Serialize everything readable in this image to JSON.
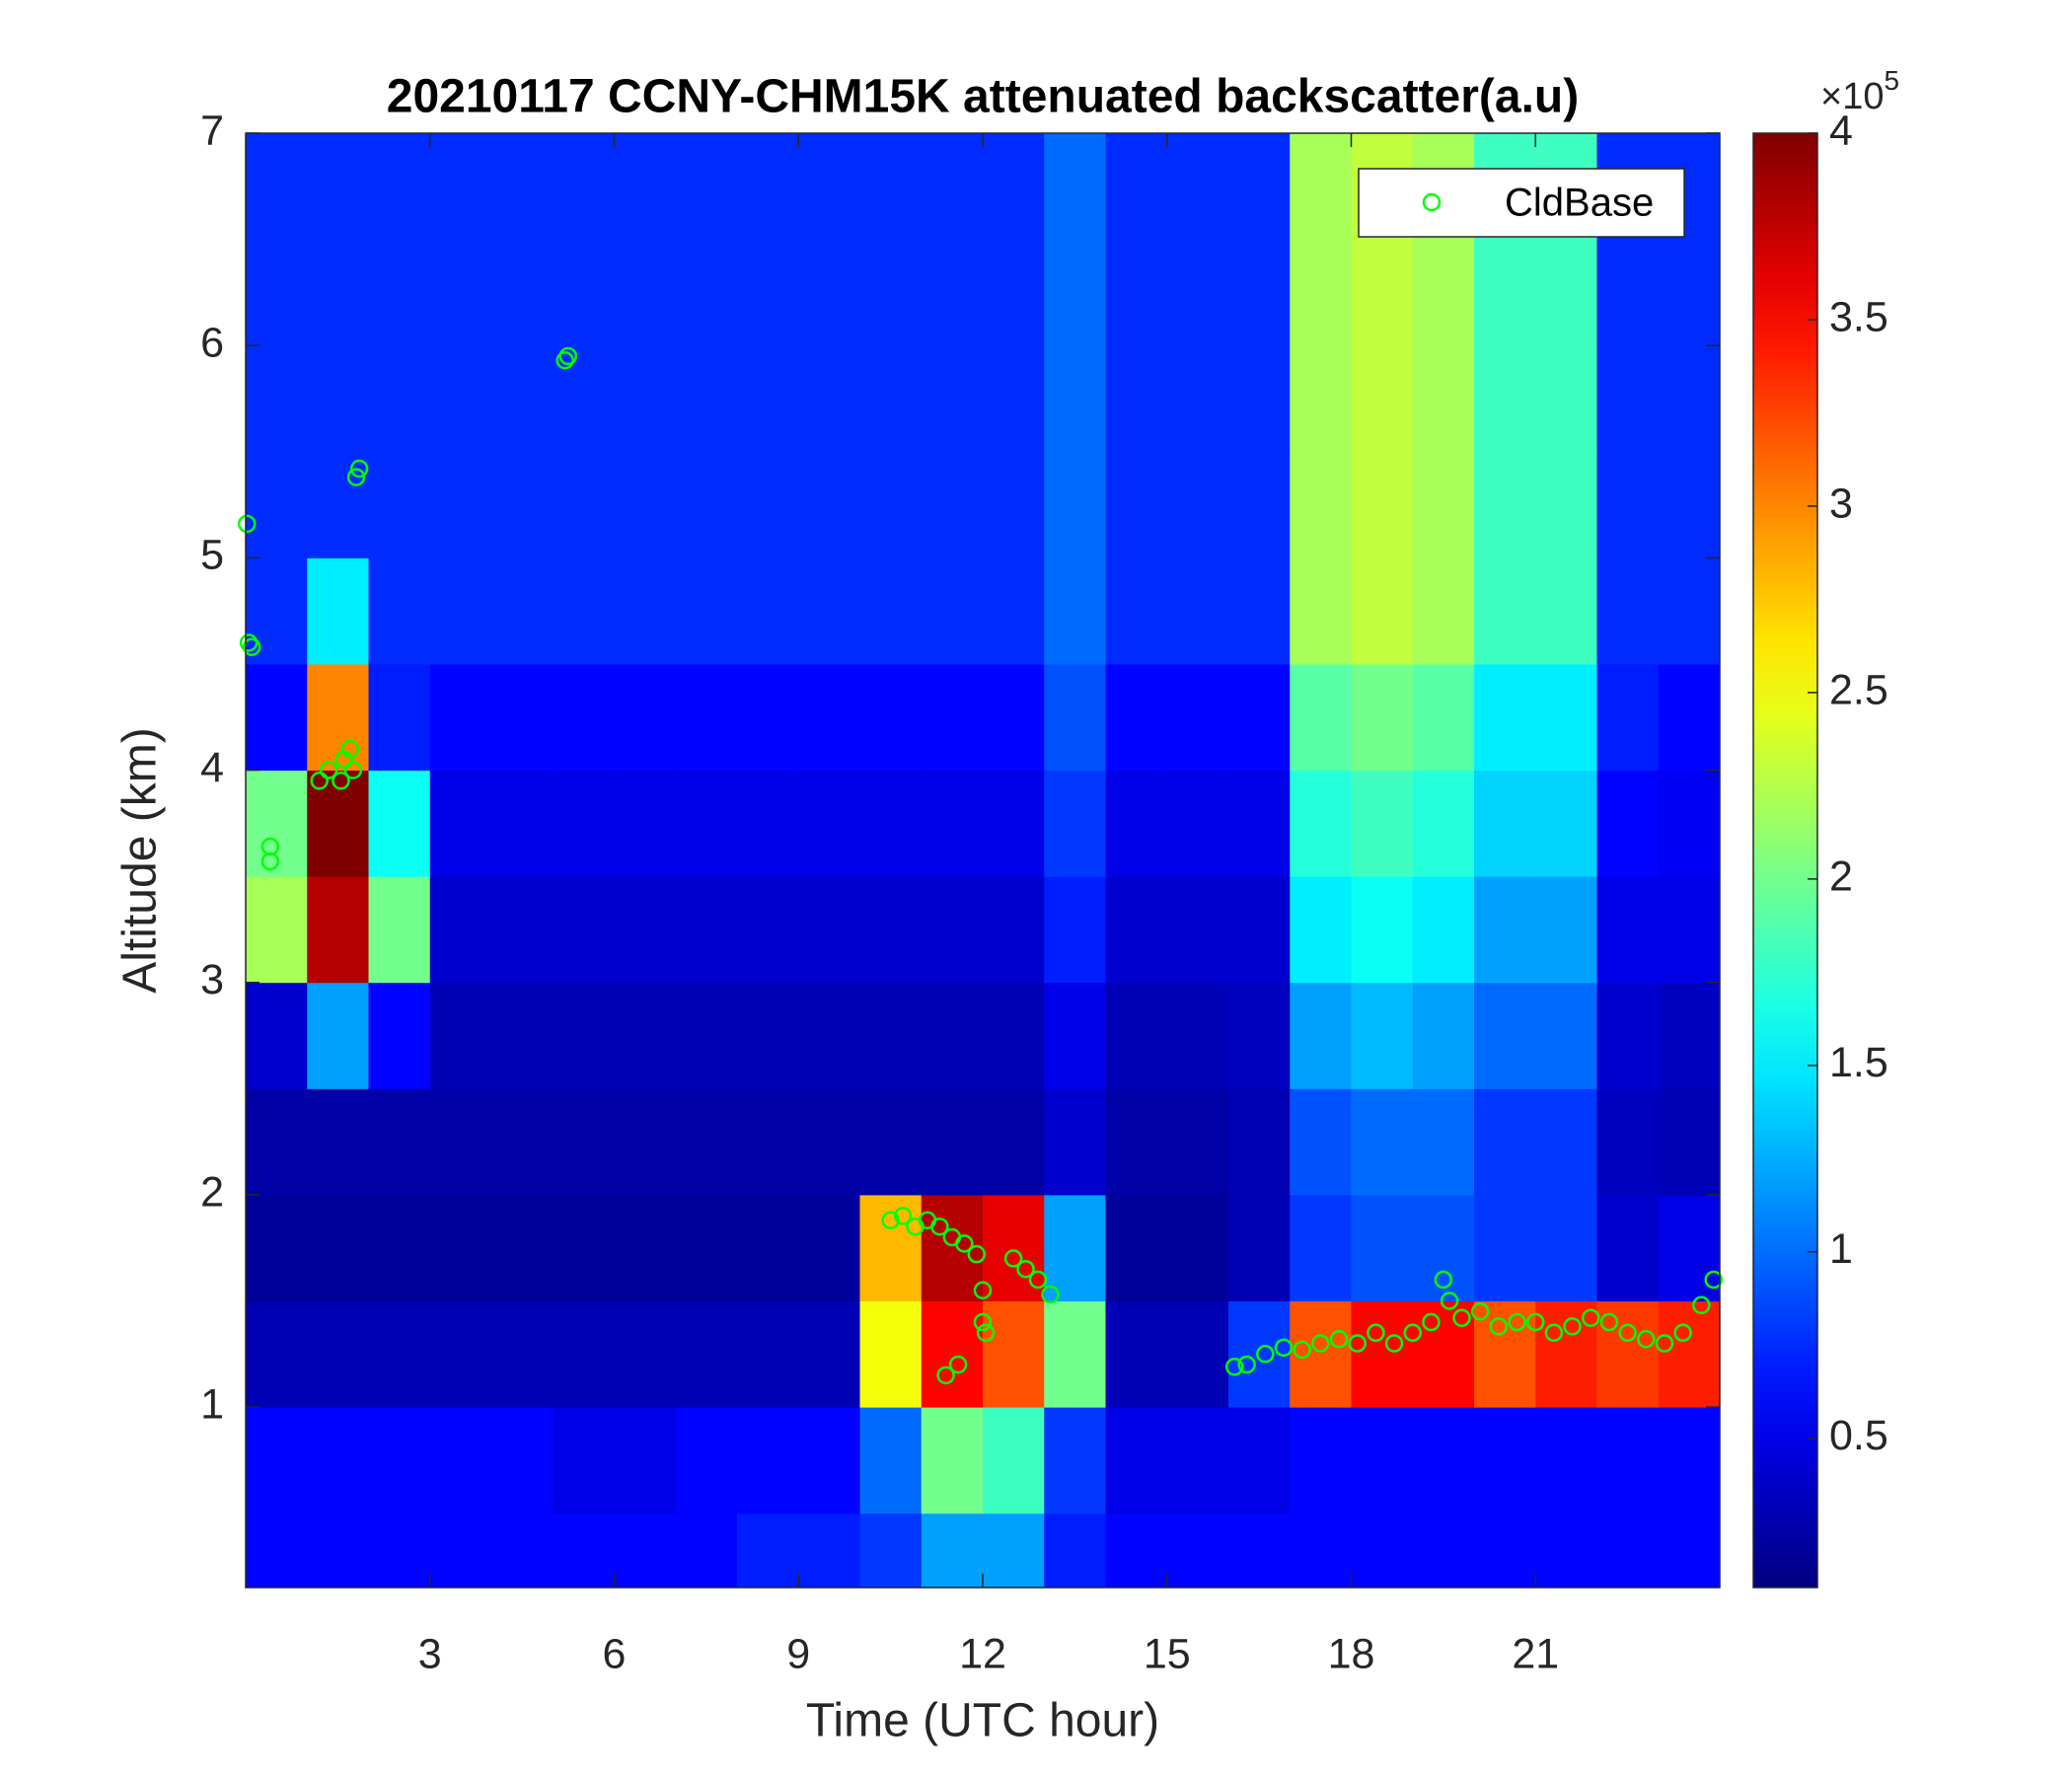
{
  "chart_data": {
    "type": "heatmap",
    "title": "20210117 CCNY-CHM15K attenuated backscatter(a.u)",
    "x_label": "Time (UTC hour)",
    "y_label": "Altitude (km)",
    "xlim": [
      0,
      24
    ],
    "xticks": [
      3,
      6,
      9,
      12,
      15,
      18,
      21
    ],
    "ylim": [
      0.15,
      7
    ],
    "yticks": [
      1,
      2,
      3,
      4,
      5,
      6,
      7
    ],
    "clim": [
      0.1,
      4
    ],
    "cticks": [
      0.5,
      1,
      1.5,
      2,
      2.5,
      3,
      3.5,
      4
    ],
    "colormap": "jet",
    "colorbar_multiplier_base": "×10",
    "colorbar_multiplier_exponent": "5",
    "legend": "upper right",
    "x": [
      0.5,
      1.5,
      2.5,
      3.5,
      4.5,
      5.5,
      6.5,
      7.5,
      8.5,
      9.5,
      10.5,
      11.5,
      12.5,
      13.5,
      14.5,
      15.5,
      16.5,
      17.5,
      18.5,
      19.5,
      20.5,
      21.5,
      22.5,
      23.5
    ],
    "y": [
      0.25,
      0.75,
      1.25,
      1.75,
      2.25,
      2.75,
      3.25,
      3.75,
      4.25,
      4.75,
      5.25,
      5.75,
      6.25,
      6.75
    ],
    "z": [
      [
        0.6,
        0.6,
        0.6,
        0.6,
        0.6,
        0.6,
        0.6,
        0.6,
        0.7,
        0.7,
        0.8,
        1.2,
        1.2,
        0.7,
        0.6,
        0.6,
        0.6,
        0.6,
        0.6,
        0.6,
        0.6,
        0.6,
        0.6,
        0.6
      ],
      [
        0.6,
        0.6,
        0.6,
        0.6,
        0.6,
        0.5,
        0.5,
        0.6,
        0.6,
        0.6,
        1.0,
        2.0,
        1.8,
        0.8,
        0.5,
        0.5,
        0.5,
        0.6,
        0.6,
        0.6,
        0.6,
        0.6,
        0.6,
        0.6
      ],
      [
        0.3,
        0.3,
        0.3,
        0.3,
        0.3,
        0.3,
        0.3,
        0.3,
        0.3,
        0.3,
        2.5,
        3.5,
        3.2,
        2.0,
        0.3,
        0.3,
        0.8,
        3.2,
        3.5,
        3.5,
        3.2,
        3.4,
        3.3,
        3.4
      ],
      [
        0.2,
        0.2,
        0.2,
        0.2,
        0.2,
        0.2,
        0.2,
        0.2,
        0.2,
        0.2,
        2.8,
        3.8,
        3.6,
        1.2,
        0.2,
        0.2,
        0.3,
        0.8,
        0.9,
        0.9,
        0.8,
        0.8,
        0.4,
        0.5
      ],
      [
        0.25,
        0.25,
        0.25,
        0.25,
        0.25,
        0.25,
        0.25,
        0.25,
        0.25,
        0.25,
        0.25,
        0.25,
        0.25,
        0.4,
        0.25,
        0.25,
        0.3,
        0.9,
        1.0,
        1.0,
        0.8,
        0.8,
        0.35,
        0.3
      ],
      [
        0.4,
        1.2,
        0.6,
        0.3,
        0.3,
        0.3,
        0.3,
        0.3,
        0.3,
        0.3,
        0.3,
        0.3,
        0.3,
        0.5,
        0.3,
        0.3,
        0.35,
        1.2,
        1.3,
        1.2,
        1.0,
        1.0,
        0.4,
        0.35
      ],
      [
        2.2,
        3.8,
        2.0,
        0.4,
        0.4,
        0.4,
        0.4,
        0.4,
        0.4,
        0.4,
        0.4,
        0.4,
        0.4,
        0.7,
        0.4,
        0.4,
        0.4,
        1.5,
        1.6,
        1.5,
        1.2,
        1.2,
        0.5,
        0.5
      ],
      [
        2.0,
        4.0,
        1.6,
        0.5,
        0.5,
        0.5,
        0.5,
        0.5,
        0.5,
        0.5,
        0.5,
        0.5,
        0.5,
        0.8,
        0.5,
        0.5,
        0.5,
        1.7,
        1.8,
        1.7,
        1.4,
        1.4,
        0.6,
        0.55
      ],
      [
        0.6,
        3.0,
        0.7,
        0.6,
        0.6,
        0.6,
        0.6,
        0.6,
        0.6,
        0.6,
        0.6,
        0.6,
        0.6,
        0.9,
        0.6,
        0.6,
        0.6,
        1.9,
        2.0,
        1.9,
        1.5,
        1.5,
        0.7,
        0.6
      ],
      [
        0.75,
        1.5,
        0.75,
        0.75,
        0.75,
        0.75,
        0.75,
        0.75,
        0.75,
        0.75,
        0.75,
        0.75,
        0.75,
        1.0,
        0.75,
        0.75,
        0.75,
        2.2,
        2.3,
        2.2,
        1.8,
        1.8,
        0.75,
        0.75
      ],
      [
        0.75,
        0.75,
        0.75,
        0.75,
        0.75,
        0.75,
        0.75,
        0.75,
        0.75,
        0.75,
        0.75,
        0.75,
        0.75,
        1.0,
        0.75,
        0.75,
        0.75,
        2.2,
        2.3,
        2.2,
        1.8,
        1.8,
        0.75,
        0.75
      ],
      [
        0.75,
        0.75,
        0.75,
        0.75,
        0.75,
        0.75,
        0.75,
        0.75,
        0.75,
        0.75,
        0.75,
        0.75,
        0.75,
        1.0,
        0.75,
        0.75,
        0.75,
        2.2,
        2.3,
        2.2,
        1.8,
        1.8,
        0.75,
        0.75
      ],
      [
        0.75,
        0.75,
        0.75,
        0.75,
        0.75,
        0.75,
        0.75,
        0.75,
        0.75,
        0.75,
        0.75,
        0.75,
        0.75,
        1.0,
        0.75,
        0.75,
        0.75,
        2.2,
        2.3,
        2.2,
        1.8,
        1.8,
        0.75,
        0.75
      ],
      [
        0.75,
        0.75,
        0.75,
        0.75,
        0.75,
        0.75,
        0.75,
        0.75,
        0.75,
        0.75,
        0.75,
        0.75,
        0.75,
        1.0,
        0.75,
        0.75,
        0.75,
        2.2,
        2.3,
        2.2,
        1.8,
        1.8,
        0.75,
        0.75
      ]
    ],
    "series": [
      {
        "name": "CldBase",
        "type": "scatter",
        "color": "#00ff00",
        "x": [
          0.02,
          0.05,
          0.1,
          0.4,
          0.4,
          1.2,
          1.35,
          1.55,
          1.6,
          1.7,
          1.75,
          1.8,
          1.85,
          5.2,
          5.25,
          10.5,
          10.7,
          10.9,
          11.1,
          11.3,
          11.5,
          11.7,
          11.9,
          12.0,
          12.0,
          12.05,
          11.6,
          11.4,
          12.5,
          12.7,
          12.9,
          13.1,
          16.1,
          16.3,
          16.6,
          16.9,
          17.2,
          17.5,
          17.8,
          18.1,
          18.4,
          18.7,
          19.0,
          19.3,
          19.6,
          19.5,
          19.8,
          20.1,
          20.4,
          20.7,
          21.0,
          21.3,
          21.6,
          21.9,
          22.2,
          22.5,
          22.8,
          23.1,
          23.4,
          23.7,
          23.9
        ],
        "values": [
          5.16,
          4.6,
          4.58,
          3.64,
          3.57,
          3.95,
          4.0,
          3.95,
          4.05,
          4.1,
          4.0,
          5.38,
          5.42,
          5.93,
          5.95,
          1.88,
          1.9,
          1.85,
          1.88,
          1.85,
          1.8,
          1.77,
          1.72,
          1.55,
          1.4,
          1.35,
          1.2,
          1.15,
          1.7,
          1.65,
          1.6,
          1.53,
          1.19,
          1.2,
          1.25,
          1.28,
          1.27,
          1.3,
          1.32,
          1.3,
          1.35,
          1.3,
          1.35,
          1.4,
          1.5,
          1.6,
          1.42,
          1.45,
          1.38,
          1.4,
          1.4,
          1.35,
          1.38,
          1.42,
          1.4,
          1.35,
          1.32,
          1.3,
          1.35,
          1.48,
          1.6
        ]
      }
    ]
  }
}
